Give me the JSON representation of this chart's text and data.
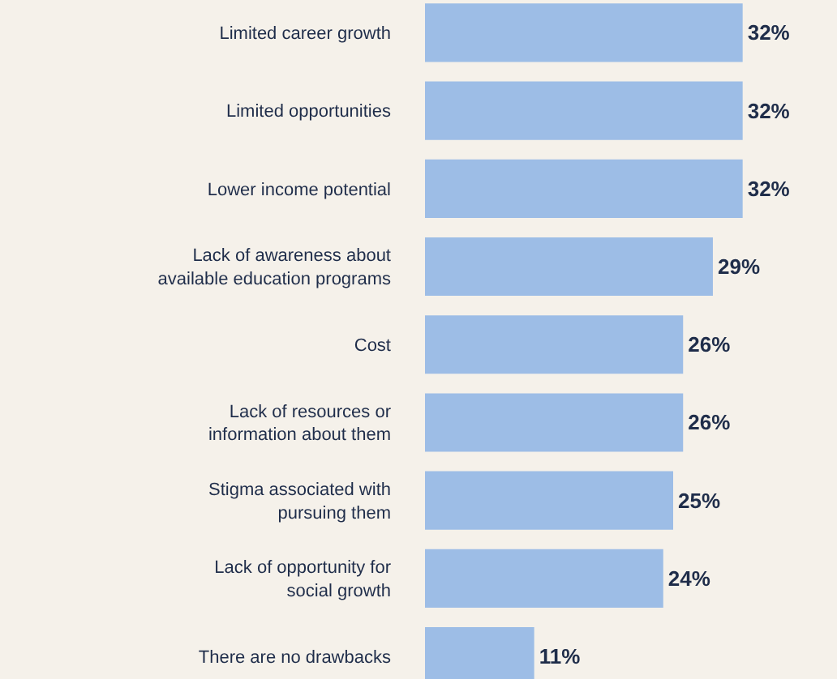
{
  "chart_data": {
    "type": "bar",
    "orientation": "horizontal",
    "categories": [
      "Limited career growth",
      "Limited opportunities",
      "Lower income potential",
      "Lack of awareness about\navailable education programs",
      "Cost",
      "Lack of resources or\ninformation about them",
      "Stigma associated with\npursuing them",
      "Lack of opportunity for\nsocial growth",
      "There are no drawbacks"
    ],
    "values": [
      32,
      32,
      32,
      29,
      26,
      26,
      25,
      24,
      11
    ],
    "value_labels": [
      "32%",
      "32%",
      "32%",
      "29%",
      "26%",
      "26%",
      "25%",
      "24%",
      "11%"
    ],
    "color": "#9dbde6"
  }
}
